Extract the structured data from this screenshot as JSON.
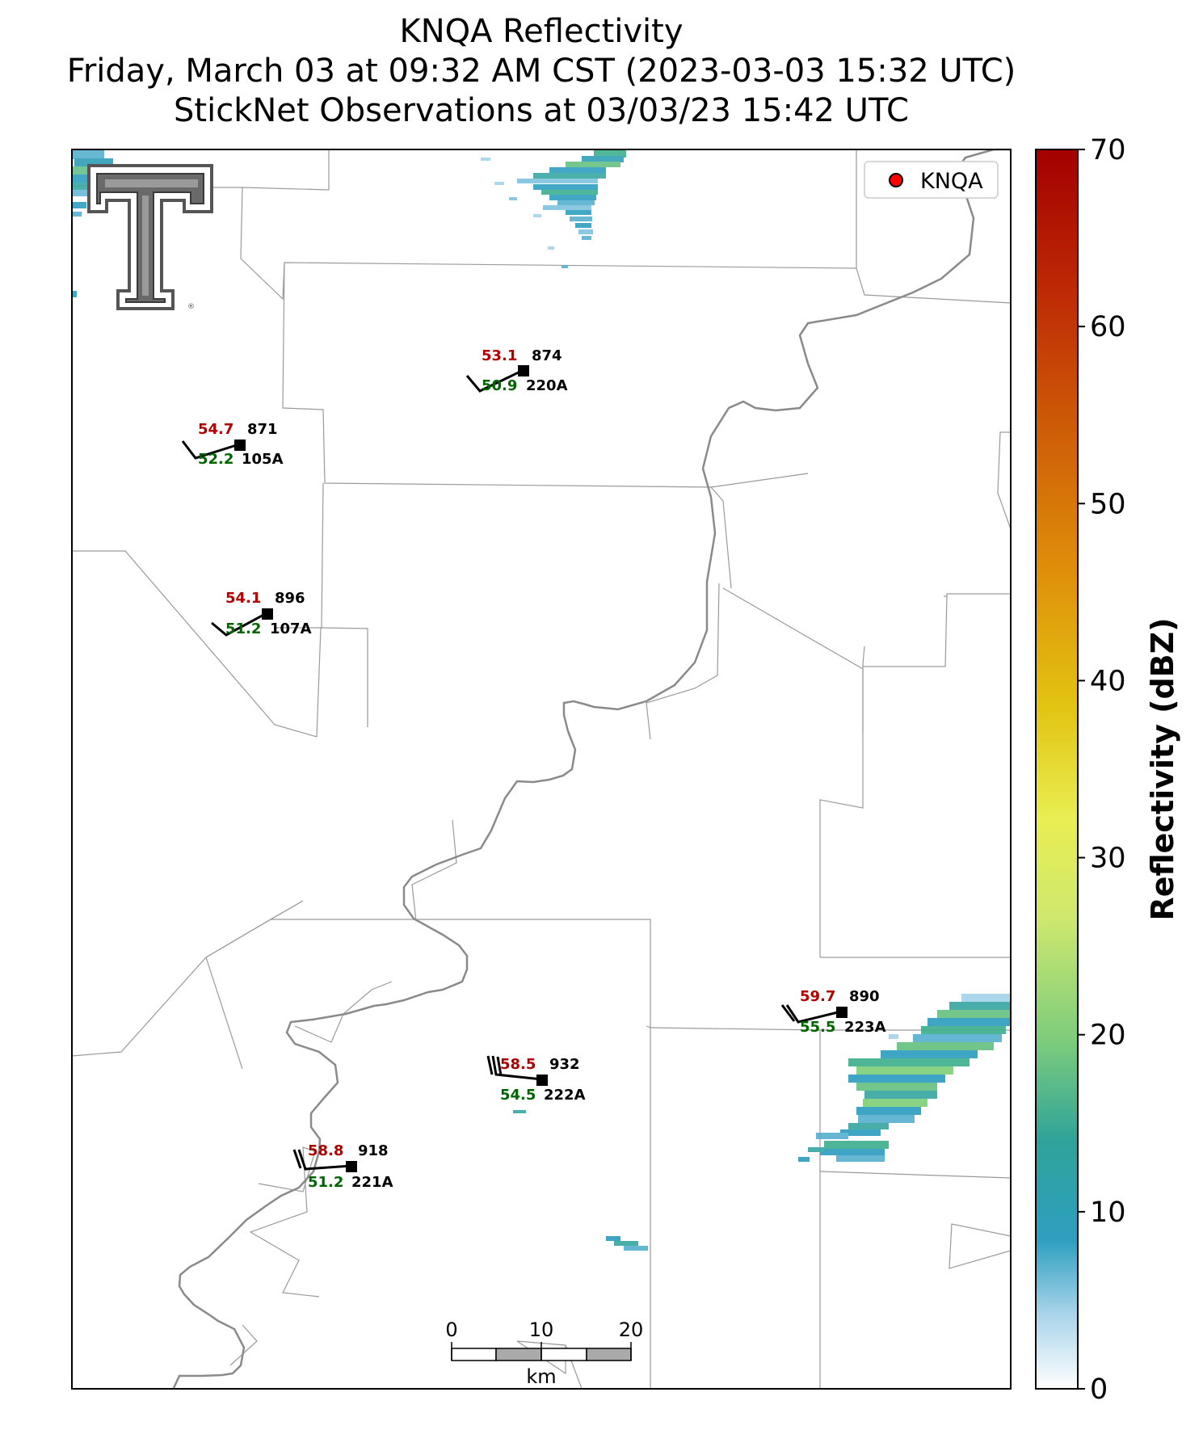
{
  "title": {
    "line1": "KNQA Reflectivity",
    "line2": "Friday, March 03 at 09:32 AM CST (2023-03-03 15:32 UTC)",
    "line3": "StickNet Observations at 03/03/23 15:42 UTC"
  },
  "legend": {
    "label": "KNQA",
    "marker_color": "#ff0000"
  },
  "logo": {
    "name": "Texas Tech double-T logo"
  },
  "stations": [
    {
      "id": "220A",
      "pressure": "874",
      "temperature": "53.1",
      "dewpoint": "50.9"
    },
    {
      "id": "105A",
      "pressure": "871",
      "temperature": "54.7",
      "dewpoint": "52.2"
    },
    {
      "id": "107A",
      "pressure": "896",
      "temperature": "54.1",
      "dewpoint": "51.2"
    },
    {
      "id": "223A",
      "pressure": "890",
      "temperature": "59.7",
      "dewpoint": "55.5"
    },
    {
      "id": "222A",
      "pressure": "932",
      "temperature": "58.5",
      "dewpoint": "54.5"
    },
    {
      "id": "221A",
      "pressure": "918",
      "temperature": "58.8",
      "dewpoint": "51.2"
    }
  ],
  "colors": {
    "temperature": "#b00000",
    "dewpoint": "#006400",
    "station": "#000000"
  },
  "scalebar": {
    "ticks": [
      "0",
      "10",
      "20"
    ],
    "unit": "km"
  },
  "colorbar": {
    "label": "Reflectivity (dBZ)",
    "ticks": [
      "0",
      "10",
      "20",
      "30",
      "40",
      "50",
      "60",
      "70"
    ],
    "range": [
      0,
      70
    ]
  }
}
